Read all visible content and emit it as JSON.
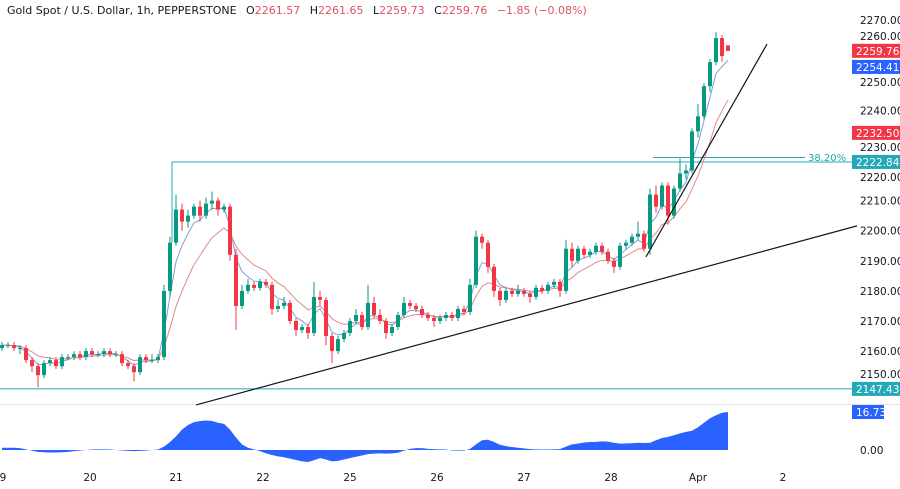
{
  "header": {
    "symbol": "Gold Spot / U.S. Dollar, 1h, PEPPERSTONE",
    "open_label": "O",
    "open": "2261.57",
    "high_label": "H",
    "high": "2261.65",
    "low_label": "L",
    "low": "2259.73",
    "close_label": "C",
    "close": "2259.76",
    "change": "−1.85 (−0.08%)"
  },
  "colors": {
    "up": "#089981",
    "down": "#f23645",
    "ma_fast": "#7e9fd6",
    "ma_slow": "#e08a8a",
    "level": "#22a8b8",
    "osc": "#2962ff",
    "label_red": "#f23645",
    "label_blue": "#2962ff",
    "label_teal": "#22aab8"
  },
  "chart_data": [
    {
      "type": "candlestick",
      "ylim": [
        2140,
        2274
      ],
      "y_ticks": [
        "2270.00",
        "2260.00",
        "2250.00",
        "2240.00",
        "2230.00",
        "2220.00",
        "2210.00",
        "2200.00",
        "2190.00",
        "2180.00",
        "2170.00",
        "2160.00",
        "2150.00"
      ],
      "x_ticks": [
        "9",
        "20",
        "21",
        "22",
        "25",
        "26",
        "27",
        "28",
        "Apr",
        "2"
      ],
      "ohlc": [
        [
          2161,
          2163,
          2160,
          2162
        ],
        [
          2162,
          2163,
          2161,
          2162
        ],
        [
          2162,
          2163,
          2160,
          2161
        ],
        [
          2161,
          2162,
          2159,
          2161
        ],
        [
          2161,
          2162,
          2156,
          2157
        ],
        [
          2157,
          2158,
          2153,
          2155
        ],
        [
          2155,
          2156,
          2148,
          2152
        ],
        [
          2152,
          2157,
          2151,
          2156
        ],
        [
          2156,
          2158,
          2155,
          2157
        ],
        [
          2157,
          2158,
          2154,
          2155
        ],
        [
          2155,
          2159,
          2154,
          2158
        ],
        [
          2158,
          2159,
          2157,
          2158
        ],
        [
          2158,
          2160,
          2157,
          2159
        ],
        [
          2159,
          2160,
          2157,
          2158
        ],
        [
          2158,
          2161,
          2157,
          2160
        ],
        [
          2160,
          2161,
          2158,
          2159
        ],
        [
          2159,
          2160,
          2158,
          2159
        ],
        [
          2159,
          2161,
          2158,
          2160
        ],
        [
          2160,
          2161,
          2158,
          2159
        ],
        [
          2159,
          2160,
          2158,
          2159
        ],
        [
          2159,
          2160,
          2155,
          2156
        ],
        [
          2156,
          2157,
          2154,
          2155
        ],
        [
          2155,
          2156,
          2150,
          2153
        ],
        [
          2153,
          2159,
          2152,
          2158
        ],
        [
          2158,
          2159,
          2156,
          2157
        ],
        [
          2157,
          2159,
          2156,
          2157
        ],
        [
          2157,
          2159,
          2156,
          2158
        ],
        [
          2158,
          2182,
          2157,
          2180
        ],
        [
          2180,
          2198,
          2178,
          2196
        ],
        [
          2196,
          2212,
          2195,
          2207
        ],
        [
          2207,
          2209,
          2200,
          2203
        ],
        [
          2203,
          2207,
          2201,
          2205
        ],
        [
          2205,
          2209,
          2204,
          2208
        ],
        [
          2208,
          2210,
          2203,
          2205
        ],
        [
          2205,
          2211,
          2204,
          2209
        ],
        [
          2209,
          2213,
          2207,
          2210
        ],
        [
          2210,
          2211,
          2205,
          2207
        ],
        [
          2207,
          2209,
          2206,
          2208
        ],
        [
          2208,
          2209,
          2190,
          2192
        ],
        [
          2192,
          2194,
          2167,
          2175
        ],
        [
          2175,
          2182,
          2174,
          2180
        ],
        [
          2180,
          2184,
          2179,
          2182
        ],
        [
          2182,
          2183,
          2180,
          2181
        ],
        [
          2181,
          2184,
          2180,
          2183
        ],
        [
          2183,
          2184,
          2181,
          2182
        ],
        [
          2182,
          2183,
          2172,
          2174
        ],
        [
          2174,
          2177,
          2173,
          2175
        ],
        [
          2175,
          2178,
          2174,
          2176
        ],
        [
          2176,
          2177,
          2169,
          2170
        ],
        [
          2170,
          2171,
          2165,
          2167
        ],
        [
          2167,
          2169,
          2166,
          2168
        ],
        [
          2168,
          2169,
          2164,
          2166
        ],
        [
          2166,
          2183,
          2165,
          2178
        ],
        [
          2178,
          2180,
          2175,
          2177
        ],
        [
          2177,
          2178,
          2162,
          2165
        ],
        [
          2165,
          2166,
          2156,
          2160
        ],
        [
          2160,
          2165,
          2159,
          2164
        ],
        [
          2164,
          2167,
          2163,
          2166
        ],
        [
          2166,
          2171,
          2165,
          2170
        ],
        [
          2170,
          2174,
          2169,
          2172
        ],
        [
          2172,
          2173,
          2167,
          2168
        ],
        [
          2168,
          2182,
          2167,
          2176
        ],
        [
          2176,
          2178,
          2171,
          2172
        ],
        [
          2172,
          2174,
          2169,
          2170
        ],
        [
          2170,
          2171,
          2164,
          2166
        ],
        [
          2166,
          2169,
          2165,
          2168
        ],
        [
          2168,
          2173,
          2167,
          2172
        ],
        [
          2172,
          2178,
          2171,
          2176
        ],
        [
          2176,
          2177,
          2174,
          2175
        ],
        [
          2175,
          2176,
          2173,
          2174
        ],
        [
          2174,
          2175,
          2171,
          2172
        ],
        [
          2172,
          2173,
          2170,
          2171
        ],
        [
          2171,
          2172,
          2168,
          2170
        ],
        [
          2170,
          2172,
          2169,
          2171
        ],
        [
          2171,
          2173,
          2170,
          2172
        ],
        [
          2172,
          2173,
          2170,
          2171
        ],
        [
          2171,
          2175,
          2170,
          2174
        ],
        [
          2174,
          2175,
          2172,
          2173
        ],
        [
          2173,
          2184,
          2172,
          2182
        ],
        [
          2182,
          2200,
          2181,
          2198
        ],
        [
          2198,
          2199,
          2194,
          2196
        ],
        [
          2196,
          2197,
          2186,
          2188
        ],
        [
          2188,
          2189,
          2178,
          2180
        ],
        [
          2180,
          2181,
          2175,
          2177
        ],
        [
          2177,
          2181,
          2176,
          2180
        ],
        [
          2180,
          2181,
          2178,
          2179
        ],
        [
          2179,
          2182,
          2178,
          2180
        ],
        [
          2180,
          2181,
          2178,
          2179
        ],
        [
          2179,
          2180,
          2176,
          2178
        ],
        [
          2178,
          2182,
          2177,
          2181
        ],
        [
          2181,
          2182,
          2179,
          2180
        ],
        [
          2180,
          2183,
          2179,
          2182
        ],
        [
          2182,
          2184,
          2181,
          2183
        ],
        [
          2183,
          2184,
          2178,
          2180
        ],
        [
          2180,
          2197,
          2179,
          2194
        ],
        [
          2194,
          2196,
          2188,
          2190
        ],
        [
          2190,
          2195,
          2189,
          2194
        ],
        [
          2194,
          2195,
          2191,
          2192
        ],
        [
          2192,
          2194,
          2191,
          2193
        ],
        [
          2193,
          2196,
          2192,
          2195
        ],
        [
          2195,
          2196,
          2192,
          2193
        ],
        [
          2193,
          2194,
          2189,
          2190
        ],
        [
          2190,
          2191,
          2186,
          2188
        ],
        [
          2188,
          2196,
          2187,
          2195
        ],
        [
          2195,
          2197,
          2194,
          2196
        ],
        [
          2196,
          2199,
          2195,
          2198
        ],
        [
          2198,
          2203,
          2197,
          2199
        ],
        [
          2199,
          2200,
          2193,
          2194
        ],
        [
          2194,
          2214,
          2192,
          2212
        ],
        [
          2212,
          2215,
          2206,
          2208
        ],
        [
          2208,
          2216,
          2207,
          2215
        ],
        [
          2215,
          2216,
          2202,
          2205
        ],
        [
          2205,
          2215,
          2204,
          2214
        ],
        [
          2214,
          2224,
          2213,
          2219
        ],
        [
          2219,
          2222,
          2217,
          2220
        ],
        [
          2220,
          2234,
          2219,
          2233
        ],
        [
          2233,
          2242,
          2231,
          2238
        ],
        [
          2238,
          2249,
          2237,
          2248
        ],
        [
          2248,
          2257,
          2246,
          2256
        ],
        [
          2256,
          2266,
          2255,
          2264
        ],
        [
          2264,
          2265,
          2256,
          2258
        ],
        [
          2261.57,
          2261.65,
          2259.73,
          2259.76
        ]
      ],
      "horizontal_level": 2147.43,
      "fib_level": {
        "label": "38.20%",
        "value": 2222.84
      },
      "trendlines": [
        {
          "from_price": 2142.1,
          "to_price": 2201.6
        },
        {
          "from_price": 2191.3,
          "to_price": 2262.0
        }
      ],
      "price_labels": [
        {
          "text": "2259.76",
          "value": 2259.76,
          "color": "#f23645"
        },
        {
          "text": "2254.41",
          "value": 2254.41,
          "color": "#2962ff"
        },
        {
          "text": "2232.50",
          "value": 2232.5,
          "color": "#f23645"
        },
        {
          "text": "2222.84",
          "value": 2222.84,
          "color": "#22aab8"
        },
        {
          "text": "2147.43",
          "value": 2147.43,
          "color": "#22aab8"
        }
      ]
    },
    {
      "type": "area",
      "ylim": [
        -7,
        17.5
      ],
      "y_ticks": [
        "0.00"
      ],
      "last_label": "16.73",
      "values": [
        1,
        1,
        1,
        0.8,
        0.3,
        -0.3,
        -0.8,
        -1,
        -1.1,
        -1.1,
        -1,
        -0.8,
        -0.5,
        -0.2,
        0,
        0.2,
        0.3,
        0.3,
        0.2,
        0,
        -0.2,
        -0.4,
        -0.5,
        -0.4,
        -0.3,
        0,
        0.2,
        1.5,
        3.5,
        6,
        9,
        11,
        12.3,
        12.8,
        13,
        12.8,
        12,
        11.5,
        9,
        5.5,
        2.5,
        1,
        0.3,
        -0.5,
        -1.5,
        -2.2,
        -2.8,
        -3.2,
        -3.8,
        -4.4,
        -5,
        -5.3,
        -4.5,
        -3.6,
        -4.2,
        -5,
        -4.8,
        -4.2,
        -3.6,
        -3,
        -2.4,
        -1.8,
        -1.6,
        -1.5,
        -1.6,
        -1.5,
        -1.2,
        -0.3,
        0.5,
        0.8,
        0.8,
        0.5,
        0.4,
        0.3,
        0.2,
        -0.2,
        -0.3,
        -0.3,
        0.5,
        2.5,
        4.3,
        4.5,
        3.5,
        2.3,
        1.7,
        1.3,
        1,
        0.7,
        0.4,
        0.3,
        0.2,
        0.2,
        0.3,
        0.4,
        1.5,
        2.5,
        2.8,
        3.3,
        3.5,
        3.6,
        3.8,
        3.7,
        3.2,
        2.8,
        2.9,
        3,
        3.2,
        3.1,
        3.2,
        4.3,
        5.3,
        5.8,
        6.5,
        7.3,
        8,
        8.5,
        10,
        12,
        14,
        15.3,
        16.4,
        16.73
      ]
    }
  ]
}
